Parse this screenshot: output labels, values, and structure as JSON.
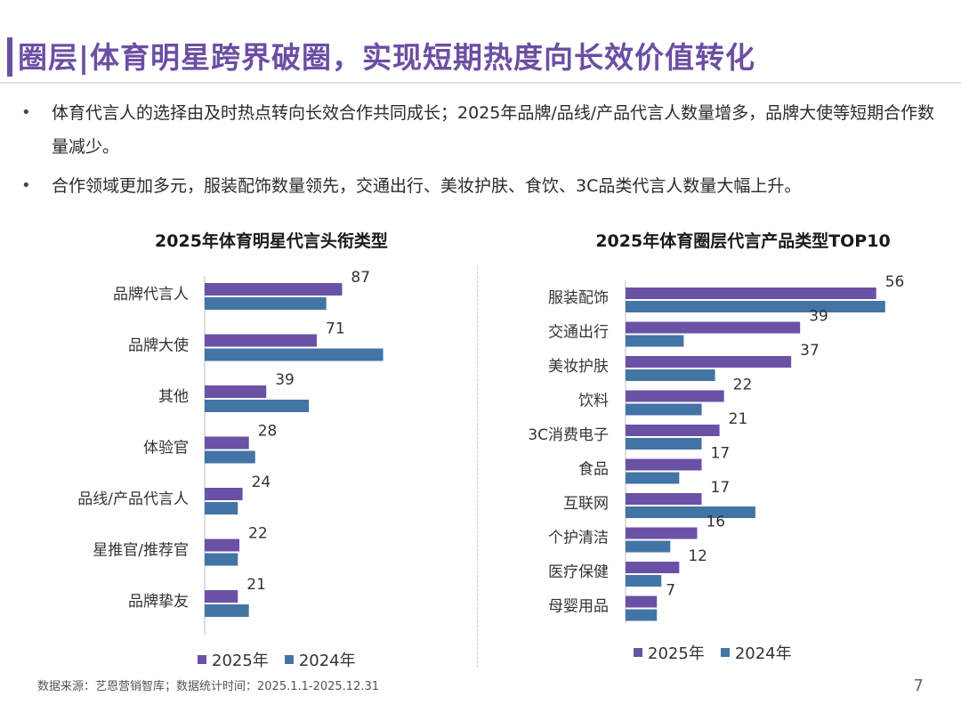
{
  "page": {
    "title": "圈层|体育明星跨界破圈，实现短期热度向长效价值转化",
    "bullets": [
      "体育代言人的选择由及时热点转向长效合作共同成长；2025年品牌/品线/产品代言人数量增多，品牌大使等短期合作数量减少。",
      "合作领域更加多元，服装配饰数量领先，交通出行、美妆护肤、食饮、3C品类代言人数量大幅上升。"
    ],
    "bullet_symbol": "•",
    "source": "数据来源：艺恩营销智库；数据统计时间：2025.1.1-2025.12.31",
    "page_number": "7",
    "colors": {
      "accent": "#6b4fa3",
      "series_2025": "#6a51a6",
      "series_2024": "#4374a6",
      "title_bar": "#6b4fa3"
    }
  },
  "chart_data": [
    {
      "type": "bar",
      "orientation": "horizontal",
      "title": "2025年体育明星代言头衔类型",
      "categories": [
        "品牌代言人",
        "品牌大使",
        "其他",
        "体验官",
        "品线/产品代言人",
        "星推官/推荐官",
        "品牌挚友"
      ],
      "series": [
        {
          "name": "2025年",
          "values": [
            87,
            71,
            39,
            28,
            24,
            22,
            21
          ],
          "labeled": true
        },
        {
          "name": "2024年",
          "values": [
            77,
            113,
            66,
            32,
            21,
            21,
            28
          ],
          "labeled": false
        }
      ],
      "xlim": [
        0,
        120
      ],
      "legend": "bottom",
      "grid": false
    },
    {
      "type": "bar",
      "orientation": "horizontal",
      "title": "2025年体育圈层代言产品类型TOP10",
      "categories": [
        "服装配饰",
        "交通出行",
        "美妆护肤",
        "饮料",
        "3C消费电子",
        "食品",
        "互联网",
        "个护清洁",
        "医疗保健",
        "母婴用品"
      ],
      "series": [
        {
          "name": "2025年",
          "values": [
            56,
            39,
            37,
            22,
            21,
            17,
            17,
            16,
            12,
            7
          ],
          "labeled": true
        },
        {
          "name": "2024年",
          "values": [
            58,
            13,
            20,
            17,
            17,
            12,
            29,
            10,
            8,
            7
          ],
          "labeled": false
        }
      ],
      "xlim": [
        0,
        65
      ],
      "legend": "bottom",
      "grid": false
    }
  ]
}
